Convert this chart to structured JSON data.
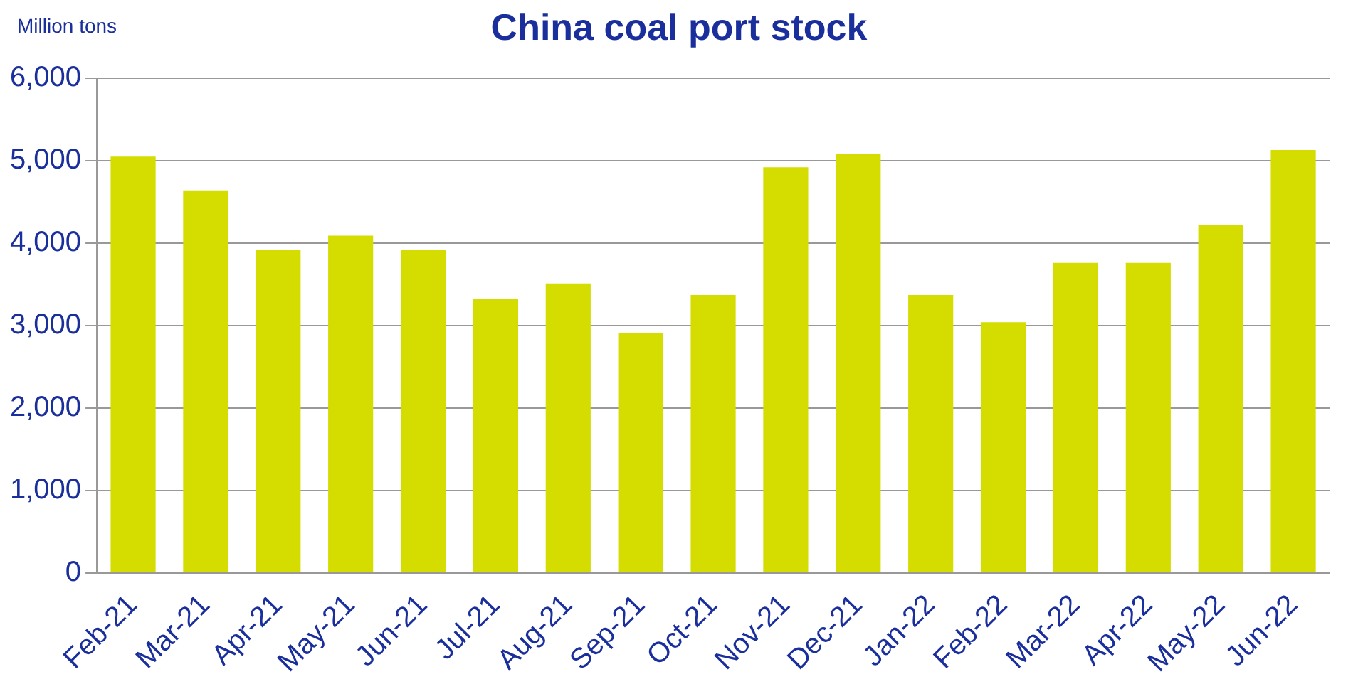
{
  "chart_data": {
    "type": "bar",
    "title": "China coal port stock",
    "ylabel": "Million tons",
    "categories": [
      "Feb-21",
      "Mar-21",
      "Apr-21",
      "May-21",
      "Jun-21",
      "Jul-21",
      "Aug-21",
      "Sep-21",
      "Oct-21",
      "Nov-21",
      "Dec-21",
      "Jan-22",
      "Feb-22",
      "Mar-22",
      "Apr-22",
      "May-22",
      "Jun-22"
    ],
    "values": [
      5050,
      4640,
      3920,
      4090,
      3920,
      3320,
      3510,
      2910,
      3370,
      4920,
      5080,
      3370,
      3040,
      3760,
      3760,
      4220,
      5130
    ],
    "color": "#d4dc00",
    "ylim": [
      0,
      6000
    ],
    "yticks": [
      0,
      {
        "value": 1000,
        "label": "1,000"
      },
      {
        "value": 2000,
        "label": "2,000"
      },
      {
        "value": 3000,
        "label": "3,000"
      },
      {
        "value": 4000,
        "label": "4,000"
      },
      {
        "value": 5000,
        "label": "5,000"
      },
      {
        "value": 6000,
        "label": "6,000"
      }
    ],
    "grid": "y",
    "legend": false
  }
}
